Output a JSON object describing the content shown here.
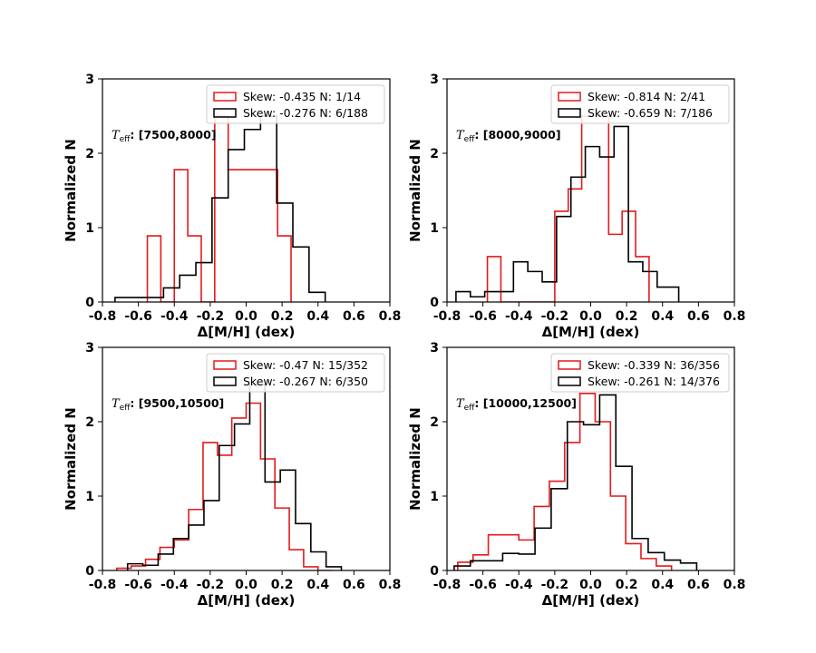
{
  "chart_data": [
    {
      "type": "histogram",
      "xlabel": "Δ[M/H] (dex)",
      "ylabel": "Normalized N",
      "xlim": [
        -0.8,
        0.8
      ],
      "ylim": [
        0,
        3
      ],
      "xticks": [
        "-0.8",
        "-0.6",
        "-0.4",
        "-0.2",
        "0.0",
        "0.2",
        "0.4",
        "0.6",
        "0.8"
      ],
      "yticks": [
        "0",
        "1",
        "2",
        "3"
      ],
      "annotation": {
        "symbol": "T",
        "sub": "eff",
        "range": "[7500,8000]"
      },
      "series": [
        {
          "name": "Skew: -0.435  N: 1/14",
          "color": "#e31a1c",
          "edges": [
            -0.55,
            -0.475,
            -0.4,
            -0.325,
            -0.25,
            -0.175,
            -0.1,
            0.175,
            0.25
          ],
          "values": [
            0.89,
            0,
            1.78,
            0.89,
            0,
            2.5,
            1.78,
            0.89
          ]
        },
        {
          "name": "Skew: -0.276  N: 6/188",
          "color": "#000000",
          "edges": [
            -0.73,
            -0.64,
            -0.55,
            -0.46,
            -0.37,
            -0.28,
            -0.19,
            -0.1,
            -0.01,
            0.08,
            0.17,
            0.26,
            0.35,
            0.44
          ],
          "values": [
            0.06,
            0.06,
            0.06,
            0.19,
            0.36,
            0.53,
            1.4,
            2.05,
            2.32,
            2.5,
            1.33,
            0.74,
            0.13
          ]
        }
      ]
    },
    {
      "type": "histogram",
      "xlabel": "Δ[M/H] (dex)",
      "ylabel": "Normalized N",
      "xlim": [
        -0.8,
        0.8
      ],
      "ylim": [
        0,
        3
      ],
      "xticks": [
        "-0.8",
        "-0.6",
        "-0.4",
        "-0.2",
        "0.0",
        "0.2",
        "0.4",
        "0.6",
        "0.8"
      ],
      "yticks": [
        "0",
        "1",
        "2",
        "3"
      ],
      "annotation": {
        "symbol": "T",
        "sub": "eff",
        "range": "[8000,9000]"
      },
      "series": [
        {
          "name": "Skew: -0.814  N: 2/41",
          "color": "#e31a1c",
          "edges": [
            -0.575,
            -0.5,
            -0.425,
            -0.35,
            -0.275,
            -0.2,
            -0.125,
            -0.05,
            0.025,
            0.1,
            0.175,
            0.25,
            0.325
          ],
          "values": [
            0.61,
            0,
            0,
            0,
            0,
            1.22,
            1.52,
            2.5,
            2.5,
            0.91,
            1.22,
            0.61
          ]
        },
        {
          "name": "Skew: -0.659  N: 7/186",
          "color": "#000000",
          "edges": [
            -0.75,
            -0.67,
            -0.59,
            -0.51,
            -0.43,
            -0.35,
            -0.27,
            -0.19,
            -0.11,
            -0.03,
            0.05,
            0.13,
            0.21,
            0.29,
            0.37,
            0.49
          ],
          "values": [
            0.14,
            0.07,
            0.14,
            0.14,
            0.54,
            0.41,
            0.27,
            1.15,
            1.68,
            2.09,
            1.95,
            2.36,
            0.54,
            0.41,
            0.2
          ]
        }
      ]
    },
    {
      "type": "histogram",
      "xlabel": "Δ[M/H] (dex)",
      "ylabel": "Normalized N",
      "xlim": [
        -0.8,
        0.8
      ],
      "ylim": [
        0,
        3
      ],
      "xticks": [
        "-0.8",
        "-0.6",
        "-0.4",
        "-0.2",
        "0.0",
        "0.2",
        "0.4",
        "0.6",
        "0.8"
      ],
      "yticks": [
        "0",
        "1",
        "2",
        "3"
      ],
      "annotation": {
        "symbol": "T",
        "sub": "eff",
        "range": "[9500,10500]"
      },
      "series": [
        {
          "name": "Skew: -0.47  N: 15/352",
          "color": "#e31a1c",
          "edges": [
            -0.72,
            -0.64,
            -0.56,
            -0.48,
            -0.4,
            -0.32,
            -0.24,
            -0.16,
            -0.08,
            0.0,
            0.08,
            0.16,
            0.24,
            0.32,
            0.4,
            0.48
          ],
          "values": [
            0.03,
            0.06,
            0.15,
            0.31,
            0.41,
            0.82,
            1.72,
            1.55,
            2.05,
            2.25,
            1.5,
            0.84,
            0.28,
            0.05,
            0.0
          ]
        },
        {
          "name": "Skew: -0.267  N: 6/350",
          "color": "#000000",
          "edges": [
            -0.66,
            -0.575,
            -0.49,
            -0.405,
            -0.32,
            -0.235,
            -0.15,
            -0.065,
            0.02,
            0.105,
            0.19,
            0.275,
            0.36,
            0.445,
            0.53
          ],
          "values": [
            0.09,
            0.07,
            0.22,
            0.43,
            0.61,
            0.94,
            1.68,
            1.97,
            2.5,
            1.19,
            1.35,
            0.63,
            0.25,
            0.05
          ]
        }
      ]
    },
    {
      "type": "histogram",
      "xlabel": "Δ[M/H] (dex)",
      "ylabel": "Normalized N",
      "xlim": [
        -0.8,
        0.8
      ],
      "ylim": [
        0,
        3
      ],
      "xticks": [
        "-0.8",
        "-0.6",
        "-0.4",
        "-0.2",
        "0.0",
        "0.2",
        "0.4",
        "0.6",
        "0.8"
      ],
      "yticks": [
        "0",
        "1",
        "2",
        "3"
      ],
      "annotation": {
        "symbol": "T",
        "sub": "eff",
        "range": "[10000,12500]"
      },
      "series": [
        {
          "name": "Skew: -0.339  N: 36/356",
          "color": "#e31a1c",
          "edges": [
            -0.74,
            -0.655,
            -0.57,
            -0.485,
            -0.4,
            -0.315,
            -0.23,
            -0.145,
            -0.06,
            0.025,
            0.11,
            0.195,
            0.28,
            0.365,
            0.45
          ],
          "values": [
            0.11,
            0.21,
            0.48,
            0.48,
            0.41,
            0.86,
            1.2,
            1.72,
            2.38,
            2.0,
            1.0,
            0.36,
            0.16,
            0.06
          ]
        },
        {
          "name": "Skew: -0.261  N: 14/376",
          "color": "#000000",
          "edges": [
            -0.76,
            -0.67,
            -0.58,
            -0.49,
            -0.4,
            -0.31,
            -0.22,
            -0.13,
            -0.04,
            0.05,
            0.14,
            0.23,
            0.32,
            0.41,
            0.5,
            0.59
          ],
          "values": [
            0.06,
            0.13,
            0.13,
            0.23,
            0.22,
            0.57,
            1.1,
            2.0,
            1.96,
            2.36,
            1.4,
            0.43,
            0.24,
            0.14,
            0.1
          ]
        }
      ]
    }
  ]
}
